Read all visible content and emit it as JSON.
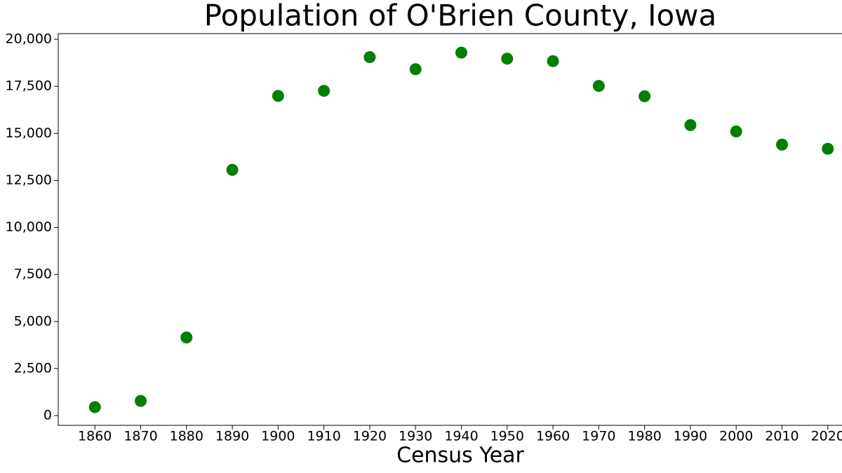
{
  "chart_data": {
    "type": "scatter",
    "title": "Population of O'Brien County, Iowa",
    "x_label": "Census Year",
    "x": [
      1860,
      1870,
      1880,
      1890,
      1900,
      1910,
      1920,
      1930,
      1940,
      1950,
      1960,
      1970,
      1980,
      1990,
      2000,
      2010,
      2020
    ],
    "values": [
      450,
      780,
      4150,
      13060,
      16990,
      17260,
      19050,
      18410,
      19290,
      18970,
      18840,
      17520,
      16970,
      15440,
      15100,
      14400,
      14180
    ],
    "color": "#008000",
    "xlim": [
      1852,
      2028
    ],
    "xticks": [
      1860,
      1870,
      1880,
      1890,
      1900,
      1910,
      1920,
      1930,
      1940,
      1950,
      1960,
      1970,
      1980,
      1990,
      2000,
      2010,
      2020
    ],
    "ylim": [
      -520,
      20300
    ],
    "yticks": [
      0,
      {
        "value": 2500,
        "label": "2,500"
      },
      {
        "value": 5000,
        "label": "5,000"
      },
      {
        "value": 7500,
        "label": "7,500"
      },
      {
        "value": 10000,
        "label": "10,000"
      },
      {
        "value": 12500,
        "label": "12,500"
      },
      {
        "value": 15000,
        "label": "15,000"
      },
      {
        "value": 17500,
        "label": "17,500"
      },
      {
        "value": 20000,
        "label": "20,000"
      }
    ],
    "grid": false
  }
}
